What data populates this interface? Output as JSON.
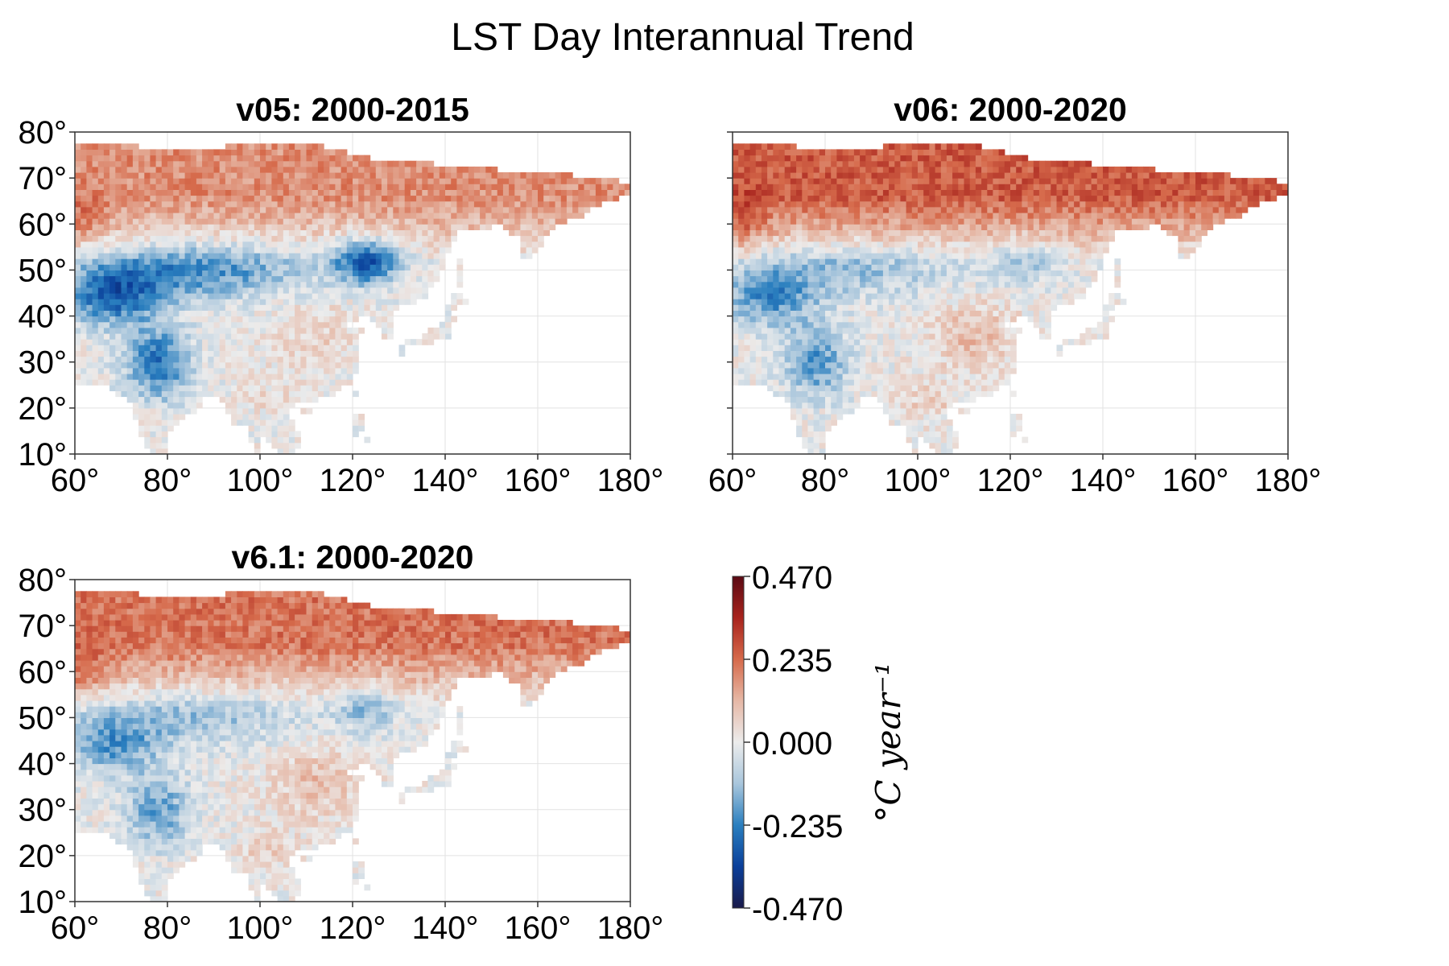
{
  "figure": {
    "title": "LST Day Interannual Trend"
  },
  "panels": [
    {
      "title": "v05: 2000-2015",
      "show_y_labels": true,
      "pattern": {
        "arctic": 0.18,
        "central_cold": 0.22,
        "india_cold": 0.26,
        "manchuria_cold": 0.3,
        "china_warm": 0.06
      }
    },
    {
      "title": "v06: 2000-2020",
      "show_y_labels": false,
      "pattern": {
        "arctic": 0.26,
        "central_cold": 0.12,
        "india_cold": 0.2,
        "manchuria_cold": 0.1,
        "china_warm": 0.1
      }
    },
    {
      "title": "v6.1: 2000-2020",
      "show_y_labels": true,
      "pattern": {
        "arctic": 0.22,
        "central_cold": 0.12,
        "india_cold": 0.18,
        "manchuria_cold": 0.12,
        "china_warm": 0.1
      }
    }
  ],
  "axes": {
    "xlim": [
      60,
      180
    ],
    "ylim": [
      10,
      80
    ],
    "xticks": [
      60,
      80,
      100,
      120,
      140,
      160,
      180
    ],
    "yticks": [
      10,
      20,
      30,
      40,
      50,
      60,
      70,
      80
    ],
    "xtick_labels": [
      "60°",
      "80°",
      "100°",
      "120°",
      "140°",
      "160°",
      "180°"
    ],
    "ytick_labels": [
      "10°",
      "20°",
      "30°",
      "40°",
      "50°",
      "60°",
      "70°",
      "80°"
    ]
  },
  "colorbar": {
    "min": -0.47,
    "max": 0.47,
    "tick_values": [
      0.47,
      0.235,
      0.0,
      -0.235,
      -0.47
    ],
    "tick_labels": [
      "0.470",
      "0.235",
      "0.000",
      "-0.235",
      "-0.470"
    ],
    "label": "°C year⁻¹",
    "colors": [
      "#1a1a4a",
      "#0a3f9a",
      "#2a7fbf",
      "#a9c6dc",
      "#ececec",
      "#e6b8a6",
      "#d66a4b",
      "#a8231d",
      "#5a0a14"
    ]
  }
}
